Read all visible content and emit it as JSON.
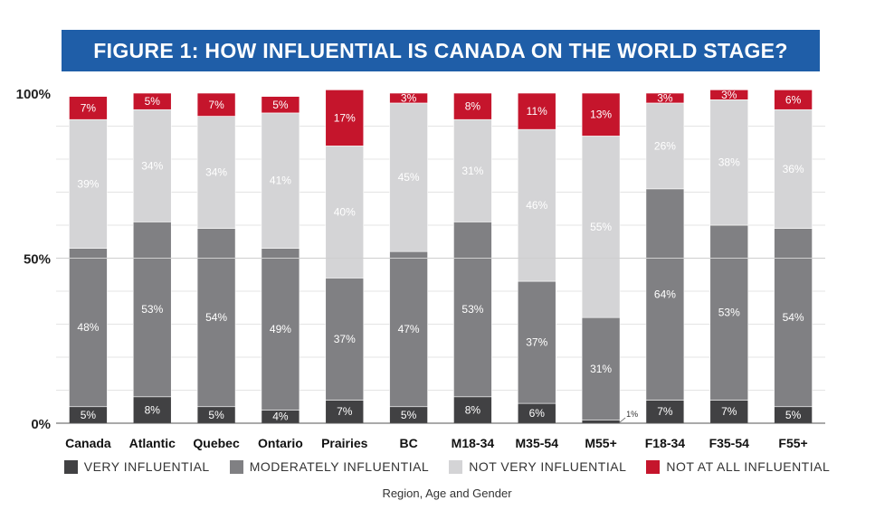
{
  "title": "FIGURE 1: HOW INFLUENTIAL IS CANADA ON THE WORLD STAGE?",
  "chart_data": {
    "type": "bar",
    "stacked": true,
    "title": "FIGURE 1: HOW INFLUENTIAL IS CANADA ON THE WORLD STAGE?",
    "xlabel": "Region, Age and Gender",
    "ylabel": "",
    "ylim": [
      0,
      100
    ],
    "yticks": [
      "0%",
      "50%",
      "100%"
    ],
    "grid": true,
    "legend_position": "bottom",
    "categories": [
      "Canada",
      "Atlantic",
      "Quebec",
      "Ontario",
      "Prairies",
      "BC",
      "M18-34",
      "M35-54",
      "M55+",
      "F18-34",
      "F35-54",
      "F55+"
    ],
    "series": [
      {
        "name": "VERY INFLUENTIAL",
        "color": "#414143",
        "values": [
          5,
          8,
          5,
          4,
          7,
          5,
          8,
          6,
          1,
          7,
          7,
          5
        ]
      },
      {
        "name": "MODERATELY INFLUENTIAL",
        "color": "#808083",
        "values": [
          48,
          53,
          54,
          49,
          37,
          47,
          53,
          37,
          31,
          64,
          53,
          54
        ]
      },
      {
        "name": "NOT VERY INFLUENTIAL",
        "color": "#d4d4d6",
        "values": [
          39,
          34,
          34,
          41,
          40,
          45,
          31,
          46,
          55,
          26,
          38,
          36
        ]
      },
      {
        "name": "NOT AT ALL INFLUENTIAL",
        "color": "#c5152c",
        "values": [
          7,
          5,
          7,
          5,
          17,
          3,
          8,
          11,
          13,
          3,
          3,
          6
        ]
      }
    ]
  }
}
